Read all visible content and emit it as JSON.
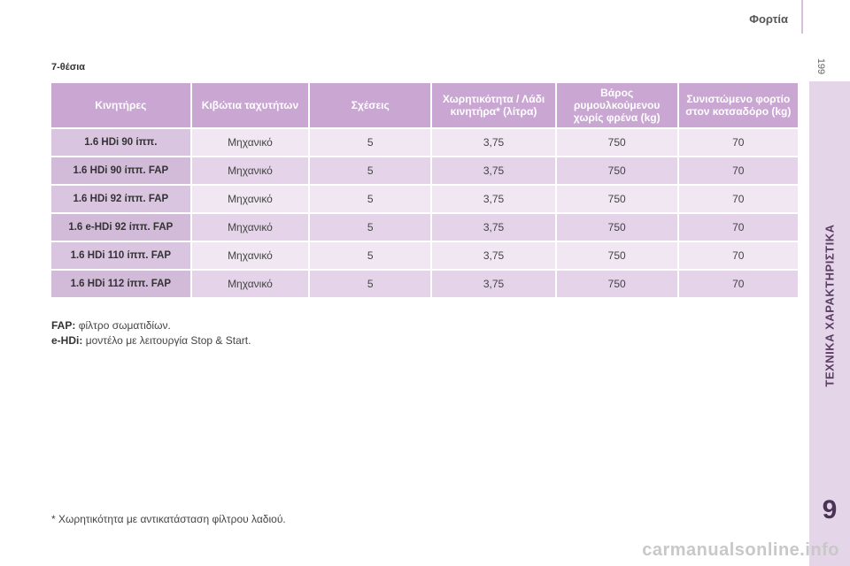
{
  "header": {
    "title": "Φορτία",
    "page_number": "199"
  },
  "sidebar": {
    "section_label": "ΤΕΧΝΙΚΑ ΧΑΡΑΚΤΗΡΙΣΤΙΚΑ",
    "chapter_number": "9"
  },
  "section_title": "7-θέσια",
  "table": {
    "headers": [
      "Κινητήρες",
      "Κιβώτια ταχυτήτων",
      "Σχέσεις",
      "Χωρητικότητα / Λάδι κινητήρα* (λίτρα)",
      "Βάρος ρυμουλκούμενου χωρίς φρένα (kg)",
      "Συνιστώμενο φορτίο στον κοτσαδόρο (kg)"
    ],
    "rows": [
      [
        "1.6 HDi 90 ίππ.",
        "Μηχανικό",
        "5",
        "3,75",
        "750",
        "70"
      ],
      [
        "1.6 HDi 90 ίππ. FAP",
        "Μηχανικό",
        "5",
        "3,75",
        "750",
        "70"
      ],
      [
        "1.6 HDi 92 ίππ. FAP",
        "Μηχανικό",
        "5",
        "3,75",
        "750",
        "70"
      ],
      [
        "1.6 e-HDi 92 ίππ. FAP",
        "Μηχανικό",
        "5",
        "3,75",
        "750",
        "70"
      ],
      [
        "1.6 HDi 110 ίππ. FAP",
        "Μηχανικό",
        "5",
        "3,75",
        "750",
        "70"
      ],
      [
        "1.6 HDi 112 ίππ. FAP",
        "Μηχανικό",
        "5",
        "3,75",
        "750",
        "70"
      ]
    ]
  },
  "notes": [
    {
      "key": "FAP:",
      "text": "φίλτρο σωματιδίων."
    },
    {
      "key": "e-HDi:",
      "text": "μοντέλο με λειτουργία Stop & Start."
    }
  ],
  "footnote": "* Χωρητικότητα με αντικατάσταση φίλτρου λαδιού.",
  "watermark": "carmanualsonline.info",
  "colors": {
    "header_bg": "#c9a7d2",
    "side_tab_bg": "#e4d6e8",
    "accent_text": "#5a3d63"
  }
}
